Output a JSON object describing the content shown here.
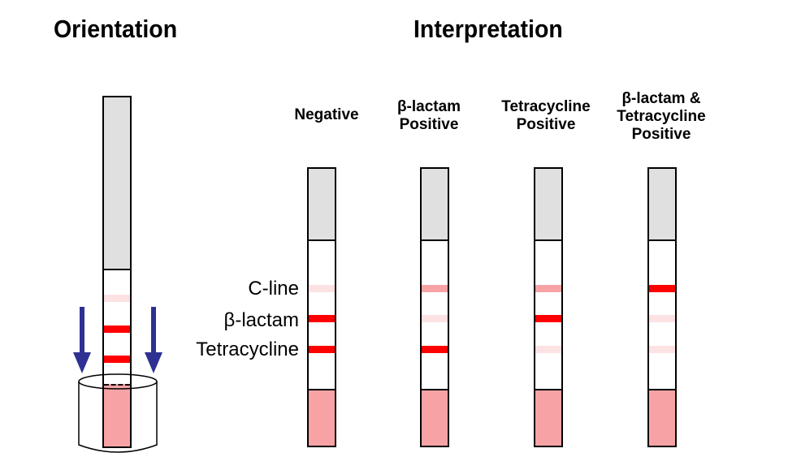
{
  "titles": {
    "orientation": "Orientation",
    "interpretation": "Interpretation"
  },
  "band_labels": [
    "C-line",
    "β-lactam",
    "Tetracycline"
  ],
  "columns": [
    {
      "label_lines": [
        "Negative"
      ],
      "bands": [
        "faint",
        "strong",
        "strong"
      ]
    },
    {
      "label_lines": [
        "β-lactam",
        "Positive"
      ],
      "bands": [
        "medium",
        "faint",
        "strong"
      ]
    },
    {
      "label_lines": [
        "Tetracycline",
        "Positive"
      ],
      "bands": [
        "medium",
        "strong",
        "faint"
      ]
    },
    {
      "label_lines": [
        "β-lactam &",
        "Tetracycline",
        "Positive"
      ],
      "bands": [
        "strong",
        "faint",
        "faint"
      ]
    }
  ],
  "orientation_strip": {
    "bands": [
      "faint",
      "strong",
      "strong"
    ]
  },
  "colors": {
    "strong": "#ff0000",
    "medium": "#f7a3a6",
    "faint": "#fde2e3",
    "sample_pad": "#f7a3a6",
    "absorbent_pad": "#e0e0e0",
    "arrow": "#2e3192"
  }
}
